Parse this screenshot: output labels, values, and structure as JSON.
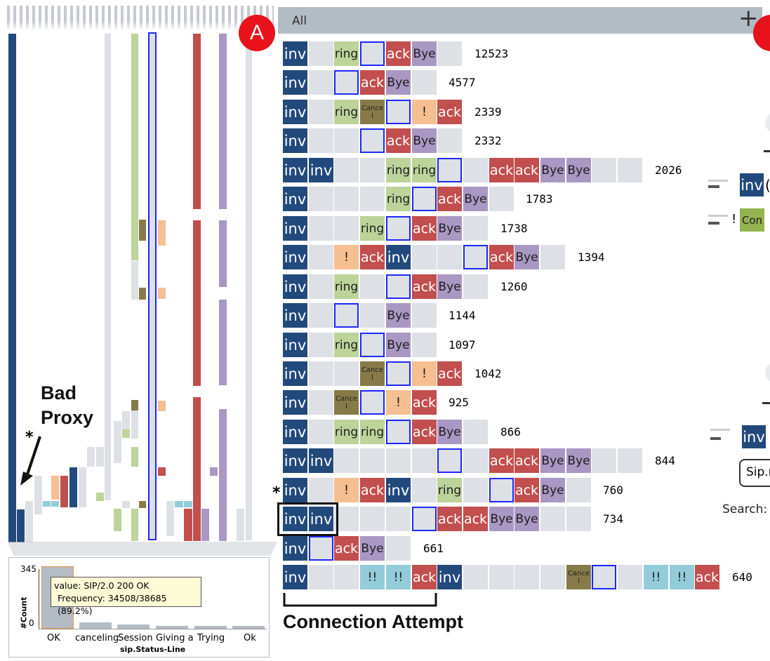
{
  "header": {
    "filter_label": "All",
    "add_label": "+"
  },
  "badges": {
    "a": "A"
  },
  "overview": {
    "annotation": "Bad\nProxy",
    "star": "*"
  },
  "histogram": {
    "y_max_label": "345",
    "y_min_label": "0",
    "y_axis_label": "#Count",
    "x_axis_label": "sip.Status-Line",
    "categories": [
      "OK",
      "canceling",
      "Session",
      "Giving a",
      "Trying",
      "Ok"
    ],
    "tooltip_value": "value: SIP/2.0 200 OK",
    "tooltip_frequency": "Frequency: 34508/38685 (89.2%)"
  },
  "sequences": [
    {
      "count": "12523",
      "cells": [
        "inv",
        "",
        "ring",
        "[]",
        "ack",
        "Bye",
        ""
      ]
    },
    {
      "count": "4577",
      "cells": [
        "inv",
        "",
        "[]",
        "ack",
        "Bye",
        ""
      ]
    },
    {
      "count": "2339",
      "cells": [
        "inv",
        "",
        "ring",
        "Cancel",
        "[]",
        "!",
        "ack"
      ]
    },
    {
      "count": "2332",
      "cells": [
        "inv",
        "",
        "",
        "[]",
        "ack",
        "Bye",
        ""
      ]
    },
    {
      "count": "2026",
      "cells": [
        "inv",
        "inv",
        "",
        "",
        "ring",
        "ring",
        "[]",
        "",
        "ack",
        "ack",
        "Bye",
        "Bye",
        "",
        ""
      ]
    },
    {
      "count": "1783",
      "cells": [
        "inv",
        "",
        "",
        "",
        "ring",
        "[]",
        "ack",
        "Bye",
        ""
      ]
    },
    {
      "count": "1738",
      "cells": [
        "inv",
        "",
        "",
        "ring",
        "[]",
        "ack",
        "Bye",
        ""
      ]
    },
    {
      "count": "1394",
      "cells": [
        "inv",
        "",
        "!",
        "ack",
        "inv",
        "",
        "",
        "[]",
        "ack",
        "Bye",
        ""
      ]
    },
    {
      "count": "1260",
      "cells": [
        "inv",
        "",
        "ring",
        "",
        "[]",
        "ack",
        "Bye",
        ""
      ]
    },
    {
      "count": "1144",
      "cells": [
        "inv",
        "",
        "[]",
        "",
        "Bye",
        ""
      ]
    },
    {
      "count": "1097",
      "cells": [
        "inv",
        "",
        "ring",
        "[]",
        "Bye",
        ""
      ]
    },
    {
      "count": "1042",
      "cells": [
        "inv",
        "",
        "",
        "Cancel",
        "[]",
        "!",
        "ack"
      ]
    },
    {
      "count": "925",
      "cells": [
        "inv",
        "",
        "Cancel",
        "[]",
        "!",
        "ack"
      ]
    },
    {
      "count": "866",
      "cells": [
        "inv",
        "",
        "ring",
        "ring",
        "[]",
        "ack",
        "Bye",
        ""
      ]
    },
    {
      "count": "844",
      "cells": [
        "inv",
        "inv",
        "",
        "",
        "",
        "",
        "[]",
        "",
        "ack",
        "ack",
        "Bye",
        "Bye",
        "",
        ""
      ]
    },
    {
      "count": "760",
      "cells": [
        "inv",
        "",
        "!",
        "ack",
        "inv",
        "",
        "ring",
        "",
        "[]",
        "ack",
        "Bye",
        ""
      ]
    },
    {
      "count": "734",
      "cells": [
        "inv",
        "inv",
        "",
        "",
        "",
        "[]",
        "ack",
        "ack",
        "Bye",
        "Bye",
        "",
        ""
      ]
    },
    {
      "count": "661",
      "cells": [
        "inv",
        "[]",
        "ack",
        "Bye",
        ""
      ]
    },
    {
      "count": "640",
      "cells": [
        "inv",
        "",
        "",
        "!!",
        "!!",
        "ack",
        "inv",
        "",
        "",
        "",
        "",
        "Cancel",
        "[]",
        "",
        "!!",
        "!!",
        "ack"
      ]
    }
  ],
  "row_marker": "*",
  "bottom_label": "Connection Attempt",
  "right_panel": {
    "items": [
      "inv",
      "!",
      "Con",
      "inv"
    ],
    "sip_button": "Sip.n",
    "search_label": "Search:"
  },
  "colors": {
    "inv": "#22497c",
    "ack": "#c24e4e",
    "bye": "#a997c4",
    "ring": "#bcd39a",
    "excl": "#f6bf92",
    "cancel": "#877a49",
    "dbl": "#93cbd8",
    "gap": "#dde0e5",
    "highlight": "#1d27ff"
  }
}
